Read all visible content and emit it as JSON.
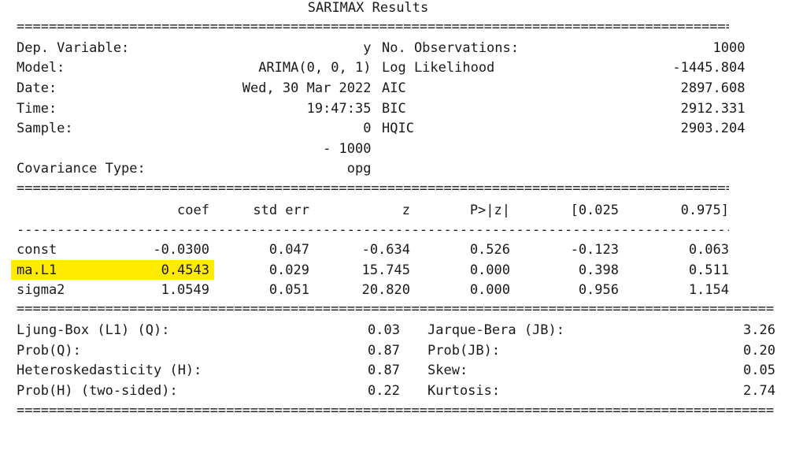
{
  "title": "SARIMAX Results",
  "separators": {
    "equals_short": "===========================================================================================",
    "equals_long": "==============================================================================================",
    "dashes": "-------------------------------------------------------------------------------------------"
  },
  "header": {
    "left": [
      {
        "label": "Dep. Variable:",
        "value": "y"
      },
      {
        "label": "Model:",
        "value": "ARIMA(0, 0, 1)"
      },
      {
        "label": "Date:",
        "value": "Wed, 30 Mar 2022"
      },
      {
        "label": "Time:",
        "value": "19:47:35"
      },
      {
        "label": "Sample:",
        "value": "0"
      },
      {
        "label": "",
        "value": "- 1000"
      },
      {
        "label": "Covariance Type:",
        "value": "opg"
      }
    ],
    "right": [
      {
        "label": "No. Observations:",
        "value": "1000"
      },
      {
        "label": "Log Likelihood",
        "value": "-1445.804"
      },
      {
        "label": "AIC",
        "value": "2897.608"
      },
      {
        "label": "BIC",
        "value": "2912.331"
      },
      {
        "label": "HQIC",
        "value": "2903.204"
      }
    ]
  },
  "coef_table": {
    "columns": [
      "coef",
      "std err",
      "z",
      "P>|z|",
      "[0.025",
      "0.975]"
    ],
    "rows": [
      {
        "name": "const",
        "values": [
          "-0.0300",
          "0.047",
          "-0.634",
          "0.526",
          "-0.123",
          "0.063"
        ]
      },
      {
        "name": "ma.L1",
        "values": [
          "0.4543",
          "0.029",
          "15.745",
          "0.000",
          "0.398",
          "0.511"
        ]
      },
      {
        "name": "sigma2",
        "values": [
          "1.0549",
          "0.051",
          "20.820",
          "0.000",
          "0.956",
          "1.154"
        ]
      }
    ],
    "highlight_color": "#ffea00"
  },
  "diagnostics": {
    "left": [
      {
        "label": "Ljung-Box (L1) (Q):",
        "value": "0.03"
      },
      {
        "label": "Prob(Q):",
        "value": "0.87"
      },
      {
        "label": "Heteroskedasticity (H):",
        "value": "0.87"
      },
      {
        "label": "Prob(H) (two-sided):",
        "value": "0.22"
      }
    ],
    "right": [
      {
        "label": "Jarque-Bera (JB):",
        "value": "3.26"
      },
      {
        "label": "Prob(JB):",
        "value": "0.20"
      },
      {
        "label": "Skew:",
        "value": "0.05"
      },
      {
        "label": "Kurtosis:",
        "value": "2.74"
      }
    ]
  }
}
